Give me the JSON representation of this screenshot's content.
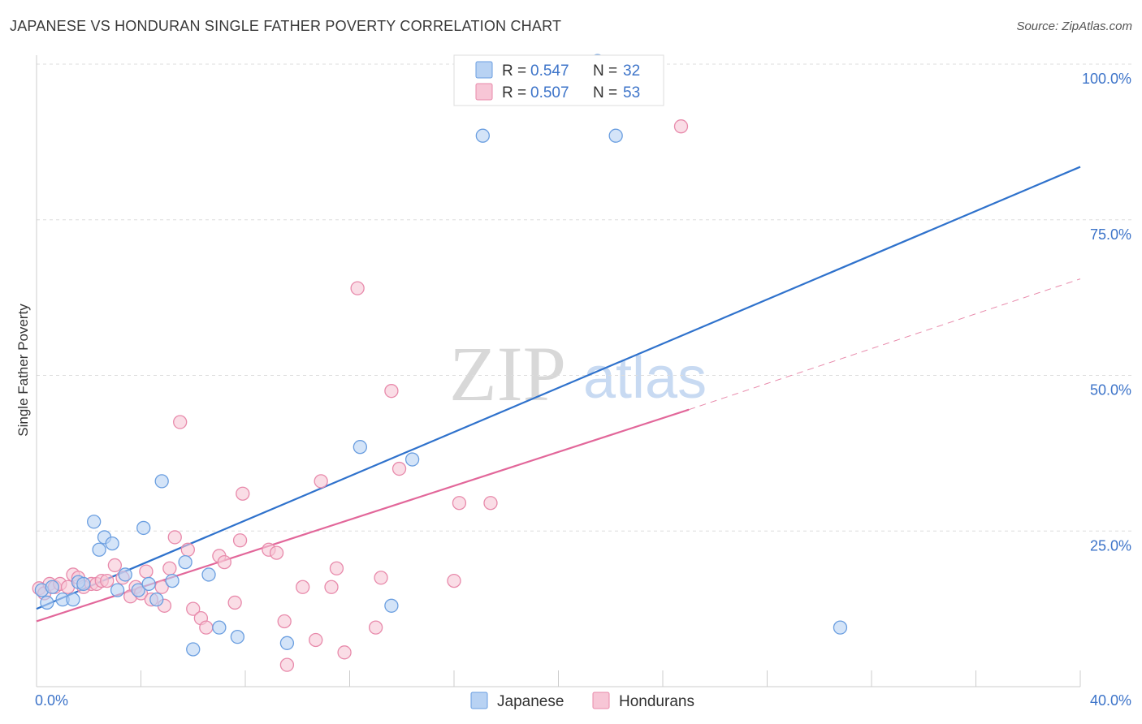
{
  "title": "JAPANESE VS HONDURAN SINGLE FATHER POVERTY CORRELATION CHART",
  "source": "Source: ZipAtlas.com",
  "watermark": {
    "zip": "ZIP",
    "atlas": "atlas"
  },
  "colors": {
    "japanese": "#6a9ee0",
    "japanese_fill": "#b8d2f3",
    "japanese_line": "#2f72cc",
    "hondurans": "#e88aab",
    "hondurans_fill": "#f7c6d6",
    "hondurans_line": "#e2679a",
    "tick_text": "#3d74c9",
    "grid": "#dddddd"
  },
  "legend": {
    "japanese": {
      "r_label": "R = ",
      "r_value": "0.547",
      "n_label": "N = ",
      "n_value": "32"
    },
    "hondurans": {
      "r_label": "R = ",
      "r_value": "0.507",
      "n_label": "N = ",
      "n_value": "53"
    }
  },
  "bottom_legend": [
    "Japanese",
    "Hondurans"
  ],
  "chart_data": {
    "type": "scatter",
    "title": "JAPANESE VS HONDURAN SINGLE FATHER POVERTY CORRELATION CHART",
    "xlabel": "",
    "ylabel": "Single Father Poverty",
    "xlim": [
      0,
      40
    ],
    "ylim": [
      0,
      100
    ],
    "x_tick_labels": [
      "0.0%",
      "40.0%"
    ],
    "y_ticks": [
      25,
      50,
      75,
      100
    ],
    "y_tick_labels": [
      "25.0%",
      "50.0%",
      "75.0%",
      "100.0%"
    ],
    "grid": true,
    "legend_position": "top-center",
    "series": [
      {
        "name": "Japanese",
        "r": 0.547,
        "n": 32,
        "trend": {
          "x0": 0,
          "y0": 12.5,
          "x1": 40,
          "y1": 83.5
        },
        "points": [
          [
            0.2,
            15.5
          ],
          [
            0.4,
            13.5
          ],
          [
            0.6,
            16.0
          ],
          [
            1.0,
            14.0
          ],
          [
            1.4,
            14.0
          ],
          [
            1.6,
            16.8
          ],
          [
            1.8,
            16.5
          ],
          [
            2.2,
            26.5
          ],
          [
            2.4,
            22.0
          ],
          [
            2.6,
            24.0
          ],
          [
            2.9,
            23.0
          ],
          [
            3.1,
            15.5
          ],
          [
            3.4,
            18.0
          ],
          [
            3.9,
            15.5
          ],
          [
            4.1,
            25.5
          ],
          [
            4.3,
            16.5
          ],
          [
            4.6,
            14.0
          ],
          [
            4.8,
            33.0
          ],
          [
            5.2,
            17.0
          ],
          [
            5.7,
            20.0
          ],
          [
            6.0,
            6.0
          ],
          [
            6.6,
            18.0
          ],
          [
            7.0,
            9.5
          ],
          [
            7.7,
            8.0
          ],
          [
            9.6,
            7.0
          ],
          [
            12.4,
            38.5
          ],
          [
            13.6,
            13.0
          ],
          [
            14.4,
            36.5
          ],
          [
            17.1,
            88.5
          ],
          [
            21.5,
            100.5
          ],
          [
            22.2,
            88.5
          ],
          [
            30.8,
            9.5
          ]
        ]
      },
      {
        "name": "Hondurans",
        "r": 0.507,
        "n": 53,
        "trend": {
          "x0": 0,
          "y0": 10.5,
          "x1": 25,
          "y1": 44.5,
          "dash_x1": 40,
          "dash_y1": 65.5
        },
        "points": [
          [
            0.1,
            15.8
          ],
          [
            0.3,
            15.0
          ],
          [
            0.5,
            16.5
          ],
          [
            0.7,
            16.0
          ],
          [
            0.9,
            16.5
          ],
          [
            1.2,
            16.0
          ],
          [
            1.4,
            18.0
          ],
          [
            1.6,
            17.5
          ],
          [
            1.8,
            16.0
          ],
          [
            2.1,
            16.5
          ],
          [
            2.3,
            16.5
          ],
          [
            2.5,
            17.0
          ],
          [
            2.7,
            17.0
          ],
          [
            3.0,
            19.5
          ],
          [
            3.3,
            17.5
          ],
          [
            3.6,
            14.5
          ],
          [
            3.8,
            16.0
          ],
          [
            4.0,
            15.0
          ],
          [
            4.2,
            18.5
          ],
          [
            4.4,
            14.0
          ],
          [
            4.8,
            16.0
          ],
          [
            4.9,
            13.0
          ],
          [
            5.1,
            19.0
          ],
          [
            5.3,
            24.0
          ],
          [
            5.5,
            42.5
          ],
          [
            5.8,
            22.0
          ],
          [
            6.0,
            12.5
          ],
          [
            6.3,
            11.0
          ],
          [
            6.5,
            9.5
          ],
          [
            7.0,
            21.0
          ],
          [
            7.2,
            20.0
          ],
          [
            7.6,
            13.5
          ],
          [
            7.8,
            23.5
          ],
          [
            7.9,
            31.0
          ],
          [
            8.9,
            22.0
          ],
          [
            9.2,
            21.5
          ],
          [
            9.5,
            10.5
          ],
          [
            9.6,
            3.5
          ],
          [
            10.2,
            16.0
          ],
          [
            10.7,
            7.5
          ],
          [
            10.9,
            33.0
          ],
          [
            11.3,
            16.0
          ],
          [
            11.5,
            19.0
          ],
          [
            11.8,
            5.5
          ],
          [
            12.3,
            64.0
          ],
          [
            13.0,
            9.5
          ],
          [
            13.2,
            17.5
          ],
          [
            13.6,
            47.5
          ],
          [
            13.9,
            35.0
          ],
          [
            16.0,
            17.0
          ],
          [
            16.2,
            29.5
          ],
          [
            17.4,
            29.5
          ],
          [
            24.7,
            90.0
          ]
        ]
      }
    ]
  }
}
